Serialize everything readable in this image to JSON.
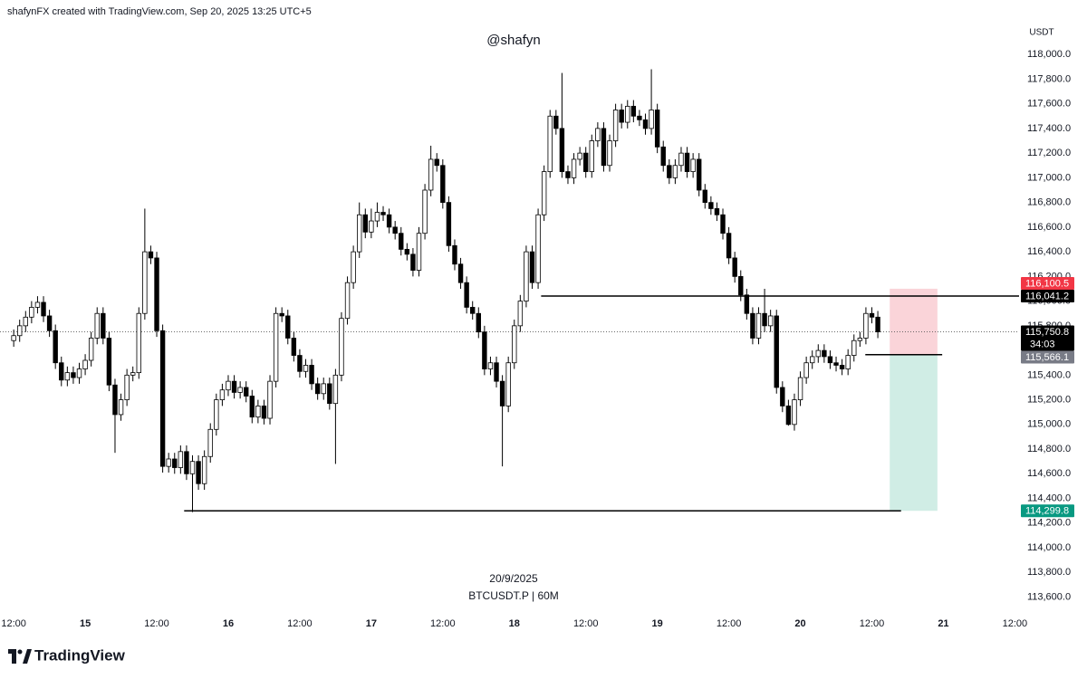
{
  "chart_data": {
    "type": "candlestick",
    "header": "shafynFX created with TradingView.com, Sep 20, 2025 13:25 UTC+5",
    "title": "@shafyn",
    "y_unit": "USDT",
    "date_label": "20/9/2025",
    "symbol": "BTCUSDT.P | 60M",
    "brand": "TradingView",
    "up_color": "#ffffff",
    "down_color": "#000000",
    "x": [
      12,
      13,
      14,
      15,
      16,
      17,
      18,
      19,
      20,
      21,
      22,
      23,
      24,
      25,
      26,
      27,
      28,
      29,
      30,
      31,
      32,
      33,
      34,
      35,
      36,
      37,
      38,
      39,
      40,
      41,
      42,
      43,
      44,
      45,
      46,
      47,
      48,
      49,
      50,
      51,
      52,
      53,
      54,
      55,
      56,
      57,
      58,
      59,
      60,
      61,
      62,
      63,
      64,
      65,
      66,
      67,
      68,
      69,
      70,
      71,
      72,
      73,
      74,
      75,
      76,
      77,
      78,
      79,
      80,
      81,
      82,
      83,
      84,
      85,
      86,
      87,
      88,
      89,
      90,
      91,
      92,
      93,
      94,
      95,
      96,
      97,
      98,
      99,
      100,
      101,
      102,
      103,
      104,
      105,
      106,
      107,
      108,
      109,
      110,
      111,
      112,
      113,
      114,
      115,
      116,
      117,
      118,
      119,
      120,
      121,
      122,
      123,
      124,
      125,
      126,
      127,
      128,
      129,
      130,
      131,
      132,
      133,
      134,
      135,
      136,
      137,
      138,
      139,
      140,
      141,
      142,
      143,
      144,
      145,
      146,
      147,
      148,
      149,
      150,
      151,
      152,
      153,
      154,
      155,
      156,
      157
    ],
    "open": [
      115680,
      115720,
      115800,
      115870,
      115950,
      115990,
      115880,
      115760,
      115500,
      115360,
      115420,
      115380,
      115450,
      115520,
      115700,
      115900,
      115700,
      115320,
      115080,
      115200,
      115400,
      115420,
      115900,
      116400,
      116350,
      115760,
      114660,
      114720,
      114650,
      114780,
      114600,
      114700,
      114520,
      114740,
      114960,
      115200,
      115280,
      115350,
      115260,
      115300,
      115230,
      115060,
      115150,
      115050,
      115350,
      115900,
      115880,
      115700,
      115560,
      115430,
      115480,
      115330,
      115250,
      115330,
      115170,
      115400,
      115860,
      116150,
      116400,
      116700,
      116560,
      116650,
      116720,
      116700,
      116600,
      116550,
      116420,
      116380,
      116250,
      116550,
      116900,
      117150,
      117100,
      116800,
      116450,
      116300,
      116150,
      115950,
      115900,
      115750,
      115450,
      115500,
      115350,
      115150,
      115500,
      115800,
      116000,
      116400,
      116150,
      116700,
      117050,
      117500,
      117400,
      117050,
      117000,
      117150,
      117200,
      117050,
      117300,
      117400,
      117100,
      117300,
      117550,
      117450,
      117580,
      117500,
      117470,
      117400,
      117550,
      117250,
      117100,
      117000,
      117100,
      117200,
      117050,
      117150,
      116900,
      116800,
      116750,
      116700,
      116550,
      116350,
      116200,
      116050,
      115900,
      115700,
      115900,
      115800,
      115880,
      115300,
      115150,
      115000,
      115200,
      115380,
      115500,
      115550,
      115600,
      115550,
      115500,
      115480,
      115450,
      115560,
      115680,
      115700,
      115900,
      115870
    ],
    "high": [
      115770,
      115850,
      115920,
      116000,
      116040,
      116040,
      115930,
      115810,
      115550,
      115470,
      115470,
      115500,
      115570,
      115750,
      115950,
      115950,
      115750,
      115370,
      115250,
      115450,
      115470,
      115950,
      116750,
      116450,
      116400,
      115810,
      114770,
      114770,
      114830,
      114830,
      114750,
      114750,
      114790,
      115010,
      115250,
      115330,
      115400,
      115400,
      115350,
      115350,
      115280,
      115200,
      115200,
      115400,
      115950,
      115950,
      115930,
      115750,
      115610,
      115530,
      115530,
      115380,
      115380,
      115380,
      115450,
      115910,
      116200,
      116450,
      116800,
      116750,
      116750,
      116800,
      116770,
      116750,
      116650,
      116600,
      116470,
      116430,
      116600,
      116950,
      117260,
      117200,
      117150,
      116850,
      116500,
      116350,
      116200,
      116000,
      115950,
      115800,
      115550,
      115550,
      115400,
      115550,
      115850,
      116050,
      116450,
      116450,
      116750,
      117100,
      117550,
      117550,
      117850,
      117100,
      117200,
      117250,
      117250,
      117350,
      117450,
      117450,
      117350,
      117600,
      117600,
      117630,
      117630,
      117550,
      117520,
      117880,
      117600,
      117300,
      117150,
      117150,
      117250,
      117250,
      117200,
      117200,
      116950,
      116850,
      116800,
      116750,
      116600,
      116400,
      116250,
      116100,
      115950,
      115950,
      116100,
      115930,
      115930,
      115350,
      115200,
      115250,
      115430,
      115550,
      115600,
      115650,
      115650,
      115600,
      115550,
      115530,
      115610,
      115730,
      115750,
      115950,
      115950,
      115920
    ],
    "low": [
      115630,
      115670,
      115750,
      115820,
      115900,
      115830,
      115710,
      115450,
      115310,
      115310,
      115330,
      115330,
      115400,
      115470,
      115650,
      115650,
      115270,
      114770,
      115030,
      115150,
      115350,
      115370,
      115850,
      116300,
      115710,
      114610,
      114610,
      114600,
      114600,
      114550,
      114290,
      114470,
      114470,
      114690,
      114910,
      115150,
      115230,
      115210,
      115210,
      115180,
      115010,
      115010,
      115000,
      115000,
      115300,
      115830,
      115650,
      115510,
      115380,
      115380,
      115280,
      115200,
      115200,
      115120,
      114680,
      115350,
      115810,
      116100,
      116350,
      116510,
      116510,
      116600,
      116650,
      116550,
      116500,
      116370,
      116330,
      116200,
      116200,
      116500,
      116850,
      117050,
      116750,
      116400,
      116250,
      116100,
      115900,
      115850,
      115700,
      115400,
      115400,
      115300,
      114660,
      115100,
      115450,
      115750,
      115950,
      116100,
      116100,
      116650,
      117000,
      117350,
      117000,
      116950,
      116950,
      117100,
      117000,
      117000,
      117250,
      117050,
      117050,
      117250,
      117400,
      117400,
      117450,
      117420,
      117350,
      117350,
      117200,
      117050,
      116950,
      116950,
      117050,
      117000,
      117000,
      116850,
      116750,
      116700,
      116650,
      116500,
      116300,
      116150,
      116000,
      115850,
      115650,
      115650,
      115750,
      115750,
      115250,
      115100,
      114990,
      114950,
      115150,
      115330,
      115450,
      115500,
      115500,
      115450,
      115430,
      115400,
      115400,
      115510,
      115630,
      115650,
      115820,
      115700
    ],
    "close": [
      115720,
      115800,
      115870,
      115950,
      115990,
      115880,
      115760,
      115500,
      115360,
      115420,
      115380,
      115450,
      115520,
      115700,
      115900,
      115700,
      115320,
      115080,
      115200,
      115400,
      115420,
      115900,
      116400,
      116350,
      115760,
      114660,
      114720,
      114650,
      114780,
      114600,
      114700,
      114520,
      114740,
      114960,
      115200,
      115280,
      115350,
      115260,
      115300,
      115230,
      115060,
      115150,
      115050,
      115350,
      115900,
      115880,
      115700,
      115560,
      115430,
      115480,
      115330,
      115250,
      115330,
      115170,
      115400,
      115860,
      116150,
      116400,
      116700,
      116560,
      116650,
      116720,
      116700,
      116600,
      116550,
      116420,
      116380,
      116250,
      116550,
      116900,
      117150,
      117100,
      116800,
      116450,
      116300,
      116150,
      115950,
      115900,
      115750,
      115450,
      115500,
      115350,
      115150,
      115500,
      115800,
      116000,
      116400,
      116150,
      116700,
      117050,
      117500,
      117400,
      117050,
      117000,
      117150,
      117200,
      117050,
      117300,
      117400,
      117100,
      117300,
      117550,
      117450,
      117580,
      117500,
      117470,
      117400,
      117550,
      117250,
      117100,
      117000,
      117100,
      117200,
      117050,
      117150,
      116900,
      116800,
      116750,
      116700,
      116550,
      116350,
      116200,
      116050,
      115900,
      115700,
      115900,
      115800,
      115880,
      115300,
      115150,
      115000,
      115200,
      115380,
      115500,
      115550,
      115600,
      115550,
      115500,
      115480,
      115450,
      115560,
      115680,
      115700,
      115900,
      115870,
      115750.8
    ],
    "xlim": [
      9.7,
      180.7
    ],
    "xticks": [
      {
        "value": 12,
        "label": "12:00"
      },
      {
        "value": 24,
        "label": "15"
      },
      {
        "value": 36,
        "label": "12:00"
      },
      {
        "value": 48,
        "label": "16"
      },
      {
        "value": 60,
        "label": "12:00"
      },
      {
        "value": 72,
        "label": "17"
      },
      {
        "value": 84,
        "label": "12:00"
      },
      {
        "value": 96,
        "label": "18"
      },
      {
        "value": 108,
        "label": "12:00"
      },
      {
        "value": 120,
        "label": "19"
      },
      {
        "value": 132,
        "label": "12:00"
      },
      {
        "value": 144,
        "label": "20"
      },
      {
        "value": 156,
        "label": "12:00"
      },
      {
        "value": 168,
        "label": "21"
      },
      {
        "value": 180,
        "label": "12:00"
      }
    ],
    "ylim": [
      113450,
      118280
    ],
    "yticks": [
      {
        "value": 113600,
        "label": "113,600.0"
      },
      {
        "value": 113800,
        "label": "113,800.0"
      },
      {
        "value": 114000,
        "label": "114,000.0"
      },
      {
        "value": 114200,
        "label": "114,200.0"
      },
      {
        "value": 114400,
        "label": "114,400.0"
      },
      {
        "value": 114600,
        "label": "114,600.0"
      },
      {
        "value": 114800,
        "label": "114,800.0"
      },
      {
        "value": 115000,
        "label": "115,000.0"
      },
      {
        "value": 115200,
        "label": "115,200.0"
      },
      {
        "value": 115400,
        "label": "115,400.0"
      },
      {
        "value": 115600,
        "label": "115,600.0"
      },
      {
        "value": 115800,
        "label": "115,800.0"
      },
      {
        "value": 116000,
        "label": "116,000.0"
      },
      {
        "value": 116200,
        "label": "116,200.0"
      },
      {
        "value": 116400,
        "label": "116,400.0"
      },
      {
        "value": 116600,
        "label": "116,600.0"
      },
      {
        "value": 116800,
        "label": "116,800.0"
      },
      {
        "value": 117000,
        "label": "117,000.0"
      },
      {
        "value": 117200,
        "label": "117,200.0"
      },
      {
        "value": 117400,
        "label": "117,400.0"
      },
      {
        "value": 117600,
        "label": "117,600.0"
      },
      {
        "value": 117800,
        "label": "117,800.0"
      },
      {
        "value": 118000,
        "label": "118,000.0"
      }
    ],
    "lines": [
      {
        "value": 116041.2,
        "label": "116,041.2",
        "x": [
          100.5,
          180.7
        ],
        "color": "#000000"
      },
      {
        "value": 114299.8,
        "x": [
          40.6,
          160.9
        ],
        "color": "#000000"
      }
    ],
    "position": {
      "stop": {
        "value": 116100.5,
        "label": "116,100.5"
      },
      "entry": {
        "value": 115566.1,
        "label": "115,566.1"
      },
      "target": {
        "value": 114299.8,
        "label": "114,299.8"
      },
      "x": [
        159,
        167
      ],
      "entry_x": [
        154.9,
        167.8
      ],
      "stop_color": "#fad4d9",
      "target_color": "#d0ede5",
      "stop_tag_color": "#f23645",
      "entry_tag_color": "#787b86",
      "target_tag_color": "#089981"
    },
    "last_price": {
      "value": 115750.8,
      "label": "115,750.8",
      "countdown": "34:03",
      "color": "#000000"
    }
  }
}
